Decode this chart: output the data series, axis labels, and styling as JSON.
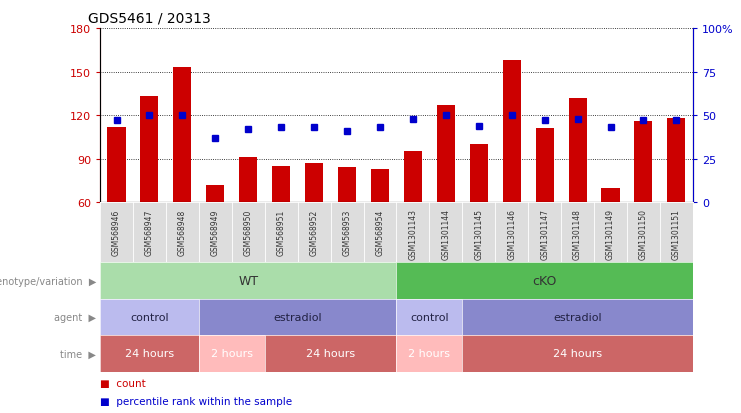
{
  "title": "GDS5461 / 20313",
  "samples": [
    "GSM568946",
    "GSM568947",
    "GSM568948",
    "GSM568949",
    "GSM568950",
    "GSM568951",
    "GSM568952",
    "GSM568953",
    "GSM568954",
    "GSM1301143",
    "GSM1301144",
    "GSM1301145",
    "GSM1301146",
    "GSM1301147",
    "GSM1301148",
    "GSM1301149",
    "GSM1301150",
    "GSM1301151"
  ],
  "counts": [
    112,
    133,
    153,
    72,
    91,
    85,
    87,
    84,
    83,
    95,
    127,
    100,
    158,
    111,
    132,
    70,
    116,
    118
  ],
  "percentiles": [
    47,
    50,
    50,
    37,
    42,
    43,
    43,
    41,
    43,
    48,
    50,
    44,
    50,
    47,
    48,
    43,
    47,
    47
  ],
  "ylim_left": [
    60,
    180
  ],
  "ylim_right": [
    0,
    100
  ],
  "yticks_left": [
    60,
    90,
    120,
    150,
    180
  ],
  "yticks_right": [
    0,
    25,
    50,
    75,
    100
  ],
  "bar_color": "#CC0000",
  "dot_color": "#0000CC",
  "genotype_groups": [
    {
      "label": "WT",
      "start": 0,
      "end": 9,
      "color": "#AADDAA"
    },
    {
      "label": "cKO",
      "start": 9,
      "end": 18,
      "color": "#55BB55"
    }
  ],
  "agent_groups": [
    {
      "label": "control",
      "start": 0,
      "end": 3,
      "color": "#BBBBEE"
    },
    {
      "label": "estradiol",
      "start": 3,
      "end": 9,
      "color": "#8888CC"
    },
    {
      "label": "control",
      "start": 9,
      "end": 11,
      "color": "#BBBBEE"
    },
    {
      "label": "estradiol",
      "start": 11,
      "end": 18,
      "color": "#8888CC"
    }
  ],
  "time_groups": [
    {
      "label": "24 hours",
      "start": 0,
      "end": 3,
      "color": "#CC6666"
    },
    {
      "label": "2 hours",
      "start": 3,
      "end": 5,
      "color": "#FFBBBB"
    },
    {
      "label": "24 hours",
      "start": 5,
      "end": 9,
      "color": "#CC6666"
    },
    {
      "label": "2 hours",
      "start": 9,
      "end": 11,
      "color": "#FFBBBB"
    },
    {
      "label": "24 hours",
      "start": 11,
      "end": 18,
      "color": "#CC6666"
    }
  ],
  "row_labels": [
    "genotype/variation",
    "agent",
    "time"
  ],
  "legend_items": [
    {
      "label": "count",
      "color": "#CC0000"
    },
    {
      "label": "percentile rank within the sample",
      "color": "#0000CC"
    }
  ],
  "background_color": "#FFFFFF",
  "tick_label_color_left": "#CC0000",
  "tick_label_color_right": "#0000CC",
  "sample_cell_color": "#DDDDDD",
  "sample_text_color": "#333333",
  "row_label_color": "#888888",
  "time_text_color": "#FFFFFF"
}
